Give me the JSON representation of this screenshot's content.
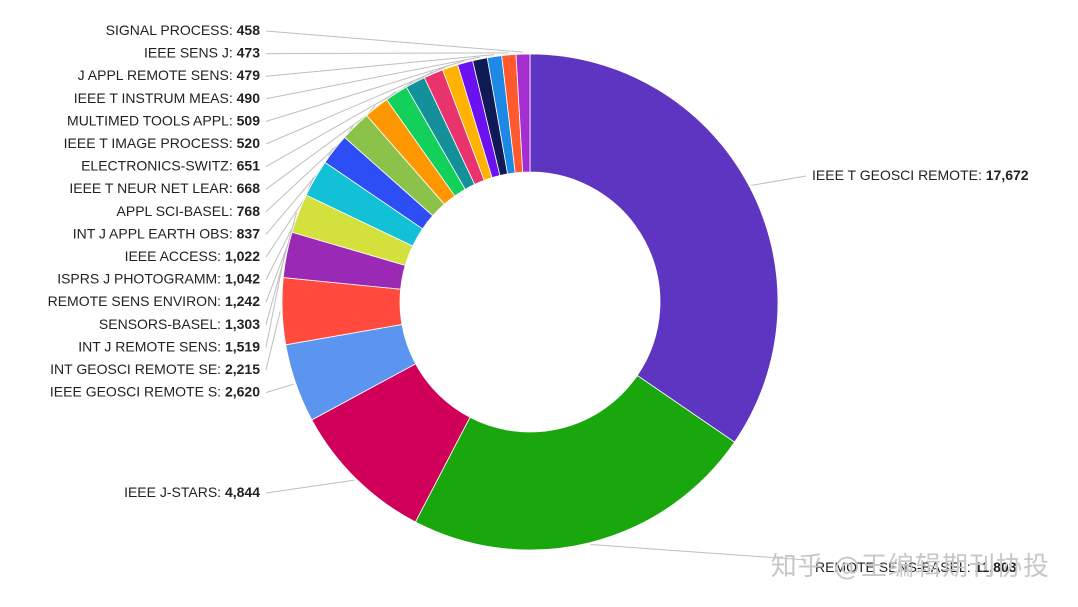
{
  "chart_data": {
    "type": "pie",
    "title": "",
    "donut": true,
    "slices": [
      {
        "label": "IEEE T GEOSCI REMOTE",
        "value": 17672,
        "display": "17,672",
        "color": "#5e35c0"
      },
      {
        "label": "REMOTE SENS-BASEL",
        "value": 11803,
        "display": "11,803",
        "color": "#1aa70d"
      },
      {
        "label": "IEEE J-STARS",
        "value": 4844,
        "display": "4,844",
        "color": "#d0005a"
      },
      {
        "label": "IEEE GEOSCI REMOTE S",
        "value": 2620,
        "display": "2,620",
        "color": "#5c95f0"
      },
      {
        "label": "INT GEOSCI REMOTE SE",
        "value": 2215,
        "display": "2,215",
        "color": "#ff4a3d"
      },
      {
        "label": "INT J REMOTE SENS",
        "value": 1519,
        "display": "1,519",
        "color": "#9a2ab5"
      },
      {
        "label": "SENSORS-BASEL",
        "value": 1303,
        "display": "1,303",
        "color": "#d4e03c"
      },
      {
        "label": "REMOTE SENS ENVIRON",
        "value": 1242,
        "display": "1,242",
        "color": "#12c1d6"
      },
      {
        "label": "ISPRS J PHOTOGRAMM",
        "value": 1042,
        "display": "1,042",
        "color": "#2d4ef5"
      },
      {
        "label": "IEEE ACCESS",
        "value": 1022,
        "display": "1,022",
        "color": "#8bc34a"
      },
      {
        "label": "INT J APPL EARTH OBS",
        "value": 837,
        "display": "837",
        "color": "#ff9800"
      },
      {
        "label": "APPL SCI-BASEL",
        "value": 768,
        "display": "768",
        "color": "#12d05a"
      },
      {
        "label": "IEEE T NEUR NET LEAR",
        "value": 668,
        "display": "668",
        "color": "#14909a"
      },
      {
        "label": "ELECTRONICS-SWITZ",
        "value": 651,
        "display": "651",
        "color": "#e8336d"
      },
      {
        "label": "IEEE T IMAGE PROCESS",
        "value": 520,
        "display": "520",
        "color": "#ffb300"
      },
      {
        "label": "MULTIMED TOOLS APPL",
        "value": 509,
        "display": "509",
        "color": "#6b10f0"
      },
      {
        "label": "IEEE T INSTRUM MEAS",
        "value": 490,
        "display": "490",
        "color": "#101a55"
      },
      {
        "label": "J APPL REMOTE SENS",
        "value": 479,
        "display": "479",
        "color": "#1e88e5"
      },
      {
        "label": "IEEE SENS J",
        "value": 473,
        "display": "473",
        "color": "#ff5a2e"
      },
      {
        "label": "SIGNAL PROCESS",
        "value": 458,
        "display": "458",
        "color": "#a52ed1"
      }
    ]
  },
  "watermark": "知乎 @王编辑期刊协投"
}
